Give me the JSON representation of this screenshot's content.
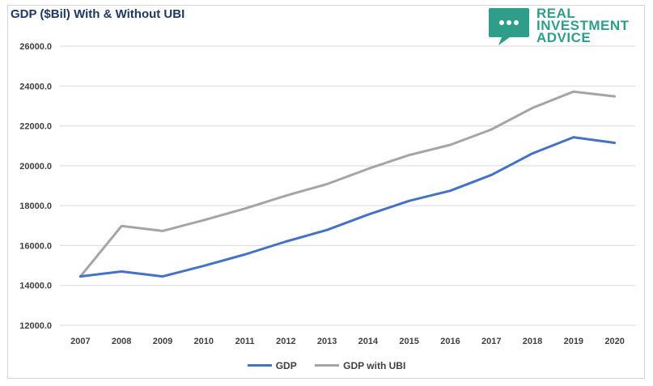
{
  "brand": {
    "line1": "REAL",
    "line2": "INVESTMENT",
    "line3": "ADVICE",
    "color": "#2e9e8a",
    "icon": "chat-bubble-icon"
  },
  "chart_data": {
    "type": "line",
    "title": "GDP ($Bil) With & Without UBI",
    "xlabel": "",
    "ylabel": "",
    "categories": [
      "2007",
      "2008",
      "2009",
      "2010",
      "2011",
      "2012",
      "2013",
      "2014",
      "2015",
      "2016",
      "2017",
      "2018",
      "2019",
      "2020"
    ],
    "series": [
      {
        "name": "GDP",
        "color": "#4472c4",
        "values": [
          14450,
          14700,
          14450,
          14980,
          15550,
          16200,
          16780,
          17550,
          18240,
          18750,
          19540,
          20620,
          21430,
          21150
        ]
      },
      {
        "name": "GDP with UBI",
        "color": "#a5a5a5",
        "values": [
          14450,
          16980,
          16730,
          17270,
          17850,
          18500,
          19080,
          19850,
          20540,
          21050,
          21820,
          22900,
          23720,
          23480
        ]
      }
    ],
    "ylim": [
      12000,
      26000
    ],
    "yticks": [
      "12000.0",
      "14000.0",
      "16000.0",
      "18000.0",
      "20000.0",
      "22000.0",
      "24000.0",
      "26000.0"
    ],
    "ytick_values": [
      12000,
      14000,
      16000,
      18000,
      20000,
      22000,
      24000,
      26000
    ],
    "grid": true,
    "legend": "bottom-center"
  }
}
